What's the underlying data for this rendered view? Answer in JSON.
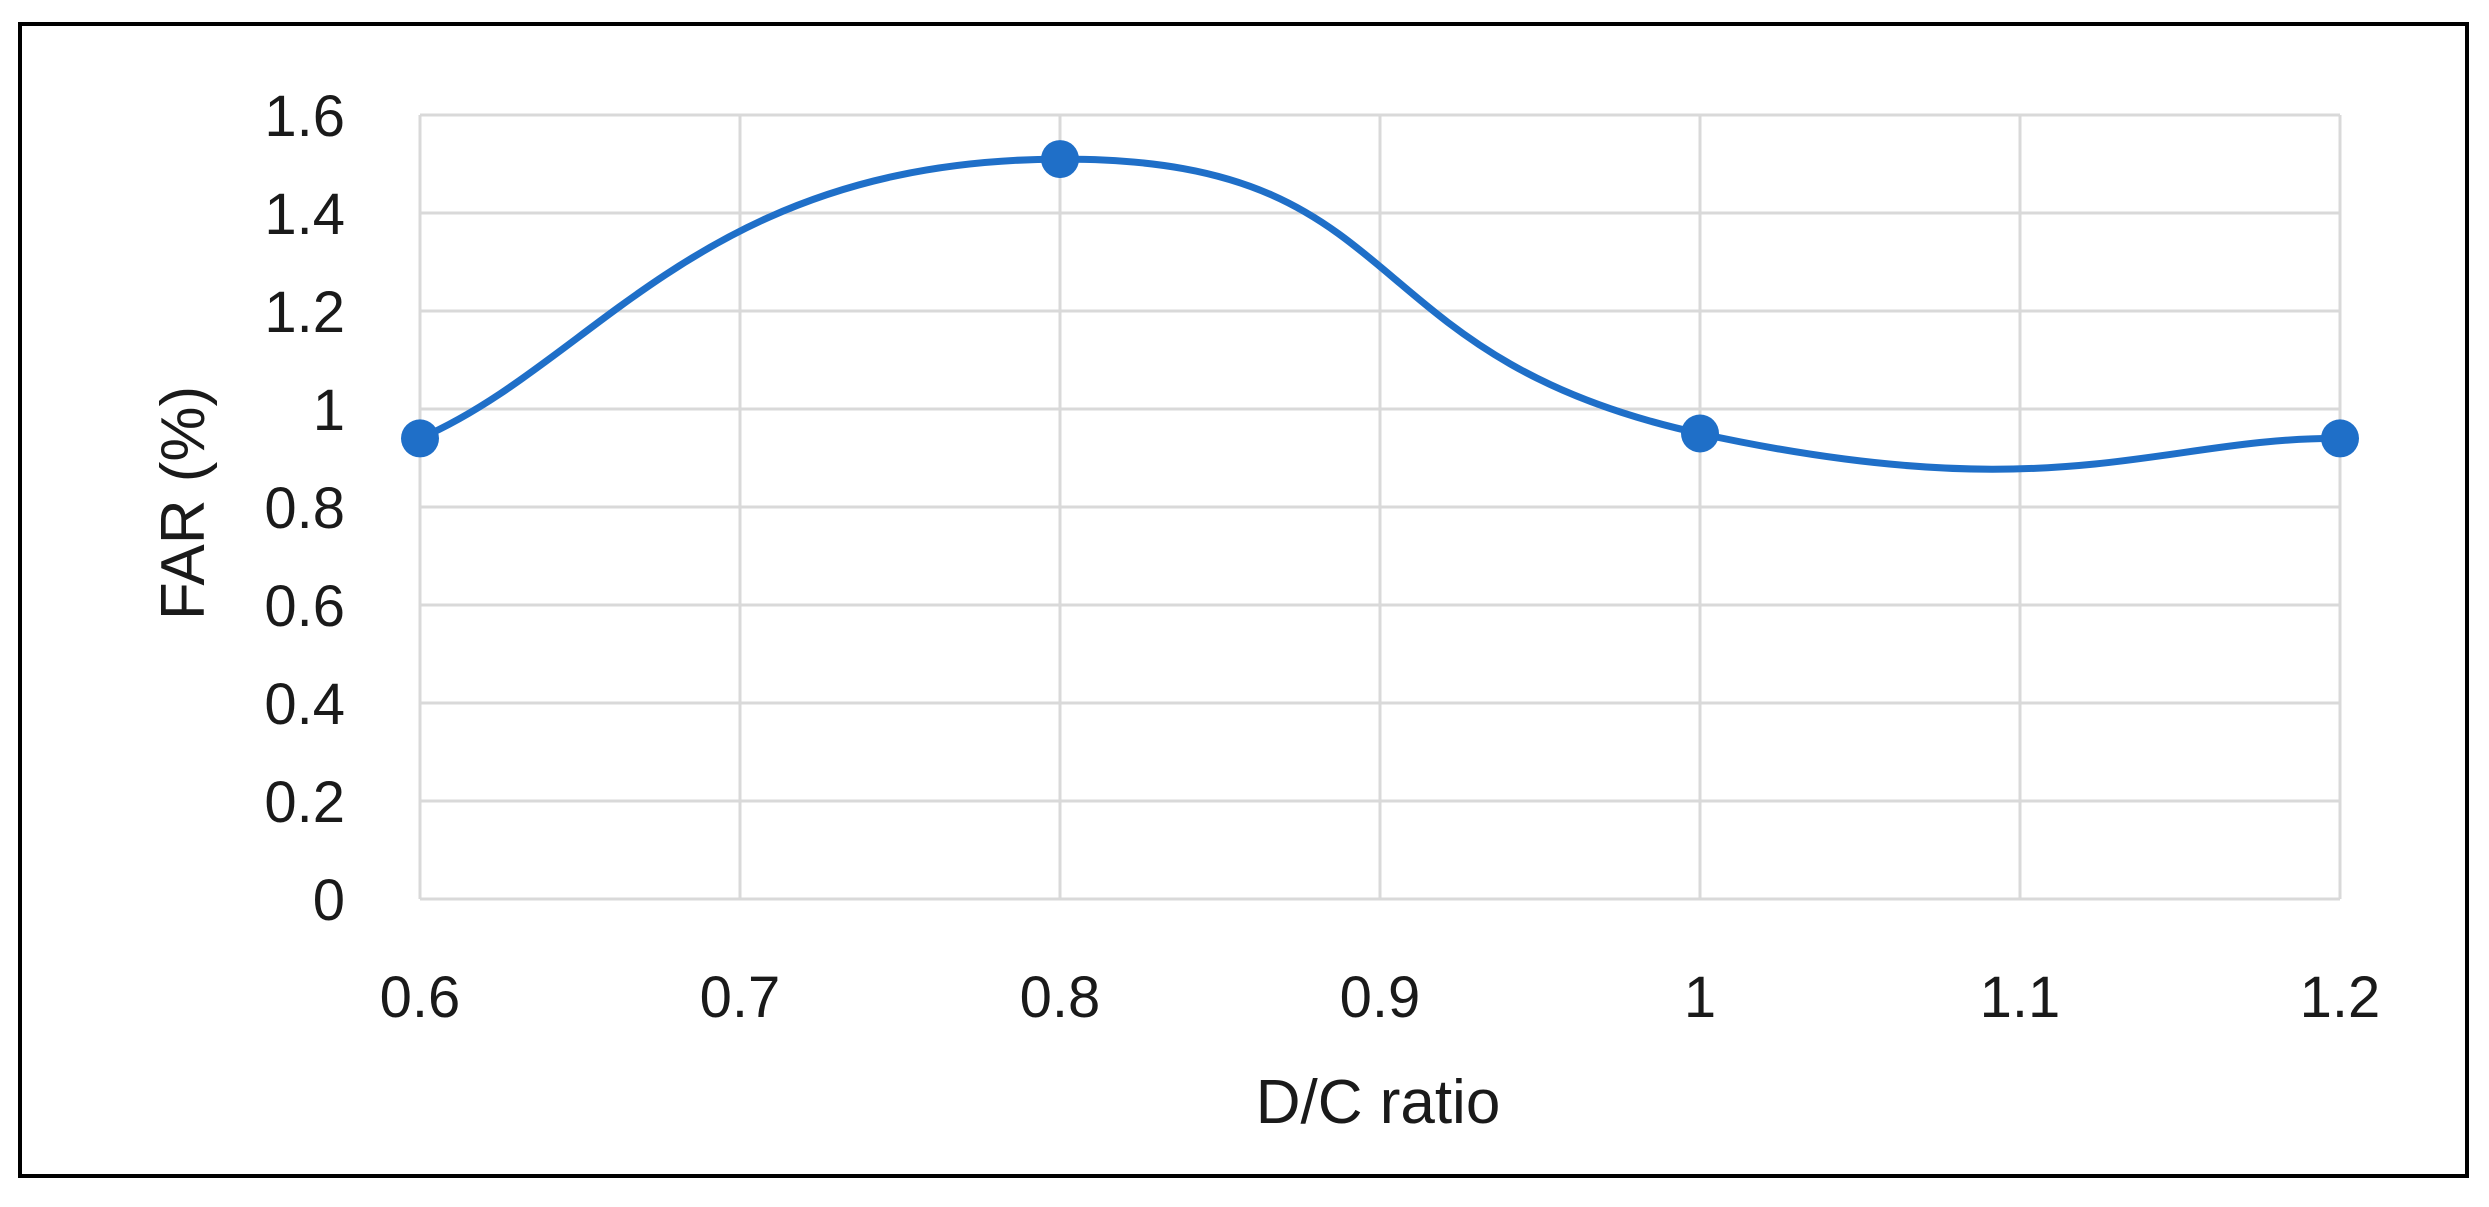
{
  "chart_data": {
    "type": "line",
    "title": "",
    "xlabel": "D/C ratio",
    "ylabel": "FAR (%)",
    "x_ticks": [
      0.6,
      0.7,
      0.8,
      0.9,
      1,
      1.1,
      1.2
    ],
    "x_tick_labels": [
      "0.6",
      "0.7",
      "0.8",
      "0.9",
      "1",
      "1.1",
      "1.2"
    ],
    "y_ticks": [
      0,
      0.2,
      0.4,
      0.6,
      0.8,
      1,
      1.2,
      1.4,
      1.6
    ],
    "y_tick_labels": [
      "0",
      "0.2",
      "0.4",
      "0.6",
      "0.8",
      "1",
      "1.2",
      "1.4",
      "1.6"
    ],
    "xlim": [
      0.6,
      1.2
    ],
    "ylim": [
      0,
      1.6
    ],
    "grid": true,
    "smoothed": true,
    "legend": "none",
    "series": [
      {
        "x": [
          0.6,
          0.8,
          1.0,
          1.2
        ],
        "y": [
          0.94,
          1.51,
          0.95,
          0.94
        ],
        "color": "#1f6fc8"
      }
    ]
  }
}
